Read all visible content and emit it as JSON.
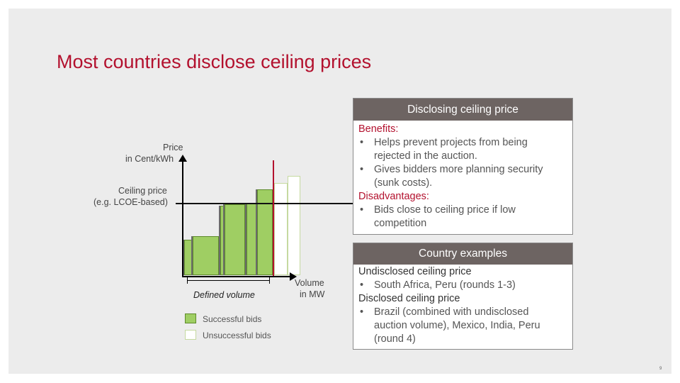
{
  "slide": {
    "title": "Most countries disclose ceiling prices",
    "page_number": "9"
  },
  "diagram": {
    "y_axis_label_line1": "Price",
    "y_axis_label_line2": "in Cent/kWh",
    "ceiling_label_line1": "Ceiling price",
    "ceiling_label_line2": "(e.g. LCOE-based)",
    "x_axis_label_line1": "Volume",
    "x_axis_label_line2": "in MW",
    "defined_volume_label": "Defined volume",
    "legend": {
      "successful": "Successful bids",
      "unsuccessful": "Unsuccessful bids"
    },
    "colors": {
      "successful_bid": "#9fce63",
      "unsuccessful_bid": "#ffffff",
      "ceiling_marker": "#b3112e"
    }
  },
  "benefits_box": {
    "header": "Disclosing ceiling price",
    "benefits_title": "Benefits:",
    "benefits": [
      {
        "line1": "Helps prevent projects from being",
        "line2": "rejected in the auction."
      },
      {
        "line1": "Gives bidders more planning security",
        "line2": "(sunk costs)."
      }
    ],
    "disadvantages_title": "Disadvantages:",
    "disadvantages": [
      {
        "line1": "Bids close to ceiling price if low",
        "line2": "competition"
      }
    ]
  },
  "countries_box": {
    "header": "Country examples",
    "undisclosed_title": "Undisclosed ceiling price",
    "undisclosed_items": [
      "South Africa, Peru (rounds 1-3)"
    ],
    "disclosed_title": "Disclosed ceiling price",
    "disclosed_item": {
      "line1": "Brazil (combined with undisclosed",
      "line2": "auction volume), Mexico, India, Peru",
      "line3": "(round 4)"
    }
  }
}
